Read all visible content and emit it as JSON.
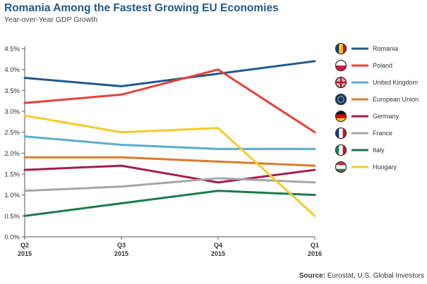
{
  "title": "Romania Among the Fastest Growing EU Economies",
  "subtitle": "Year-over-Year GDP Growth",
  "source": {
    "label": "Source:",
    "text": "Eurostat, U.S. Global Investors"
  },
  "colors": {
    "Romania": "#1f5a8c",
    "Poland": "#e8413a",
    "United Kingdom": "#5aaecd",
    "European Union": "#d97b2b",
    "Germany": "#a61c4f",
    "France": "#a6a6a6",
    "Italy": "#1b7a4c",
    "Hungary": "#f5cb2c"
  },
  "legend_icons": {
    "Romania": "romania-flag-icon",
    "Poland": "poland-flag-icon",
    "United Kingdom": "uk-flag-icon",
    "European Union": "eu-flag-icon",
    "Germany": "germany-flag-icon",
    "France": "france-flag-icon",
    "Italy": "italy-flag-icon",
    "Hungary": "hungary-flag-icon"
  },
  "chart_data": {
    "type": "line",
    "title": "Romania Among the Fastest Growing EU Economies",
    "subtitle": "Year-over-Year GDP Growth",
    "categories": [
      [
        "Q2",
        "2015"
      ],
      [
        "Q3",
        "2015"
      ],
      [
        "Q4",
        "2015"
      ],
      [
        "Q1",
        "2016"
      ]
    ],
    "y_ticks": [
      "0.0%",
      "0.5%",
      "1.0%",
      "1.5%",
      "2.0%",
      "2.5%",
      "3.0%",
      "3.5%",
      "4.0%",
      "4.5%"
    ],
    "ylim": [
      0,
      4.5
    ],
    "y_unit": "%",
    "grid": false,
    "legend_position": "right",
    "series": [
      {
        "name": "Romania",
        "values": [
          3.8,
          3.6,
          3.9,
          4.2
        ]
      },
      {
        "name": "Poland",
        "values": [
          3.2,
          3.4,
          4.0,
          2.5
        ]
      },
      {
        "name": "United Kingdom",
        "values": [
          2.4,
          2.2,
          2.1,
          2.1
        ]
      },
      {
        "name": "European Union",
        "values": [
          1.9,
          1.9,
          1.8,
          1.7
        ]
      },
      {
        "name": "Germany",
        "values": [
          1.6,
          1.7,
          1.3,
          1.6
        ]
      },
      {
        "name": "France",
        "values": [
          1.1,
          1.2,
          1.4,
          1.3
        ]
      },
      {
        "name": "Italy",
        "values": [
          0.5,
          0.8,
          1.1,
          1.0
        ]
      },
      {
        "name": "Hungary",
        "values": [
          2.9,
          2.5,
          2.6,
          0.5
        ]
      }
    ]
  }
}
